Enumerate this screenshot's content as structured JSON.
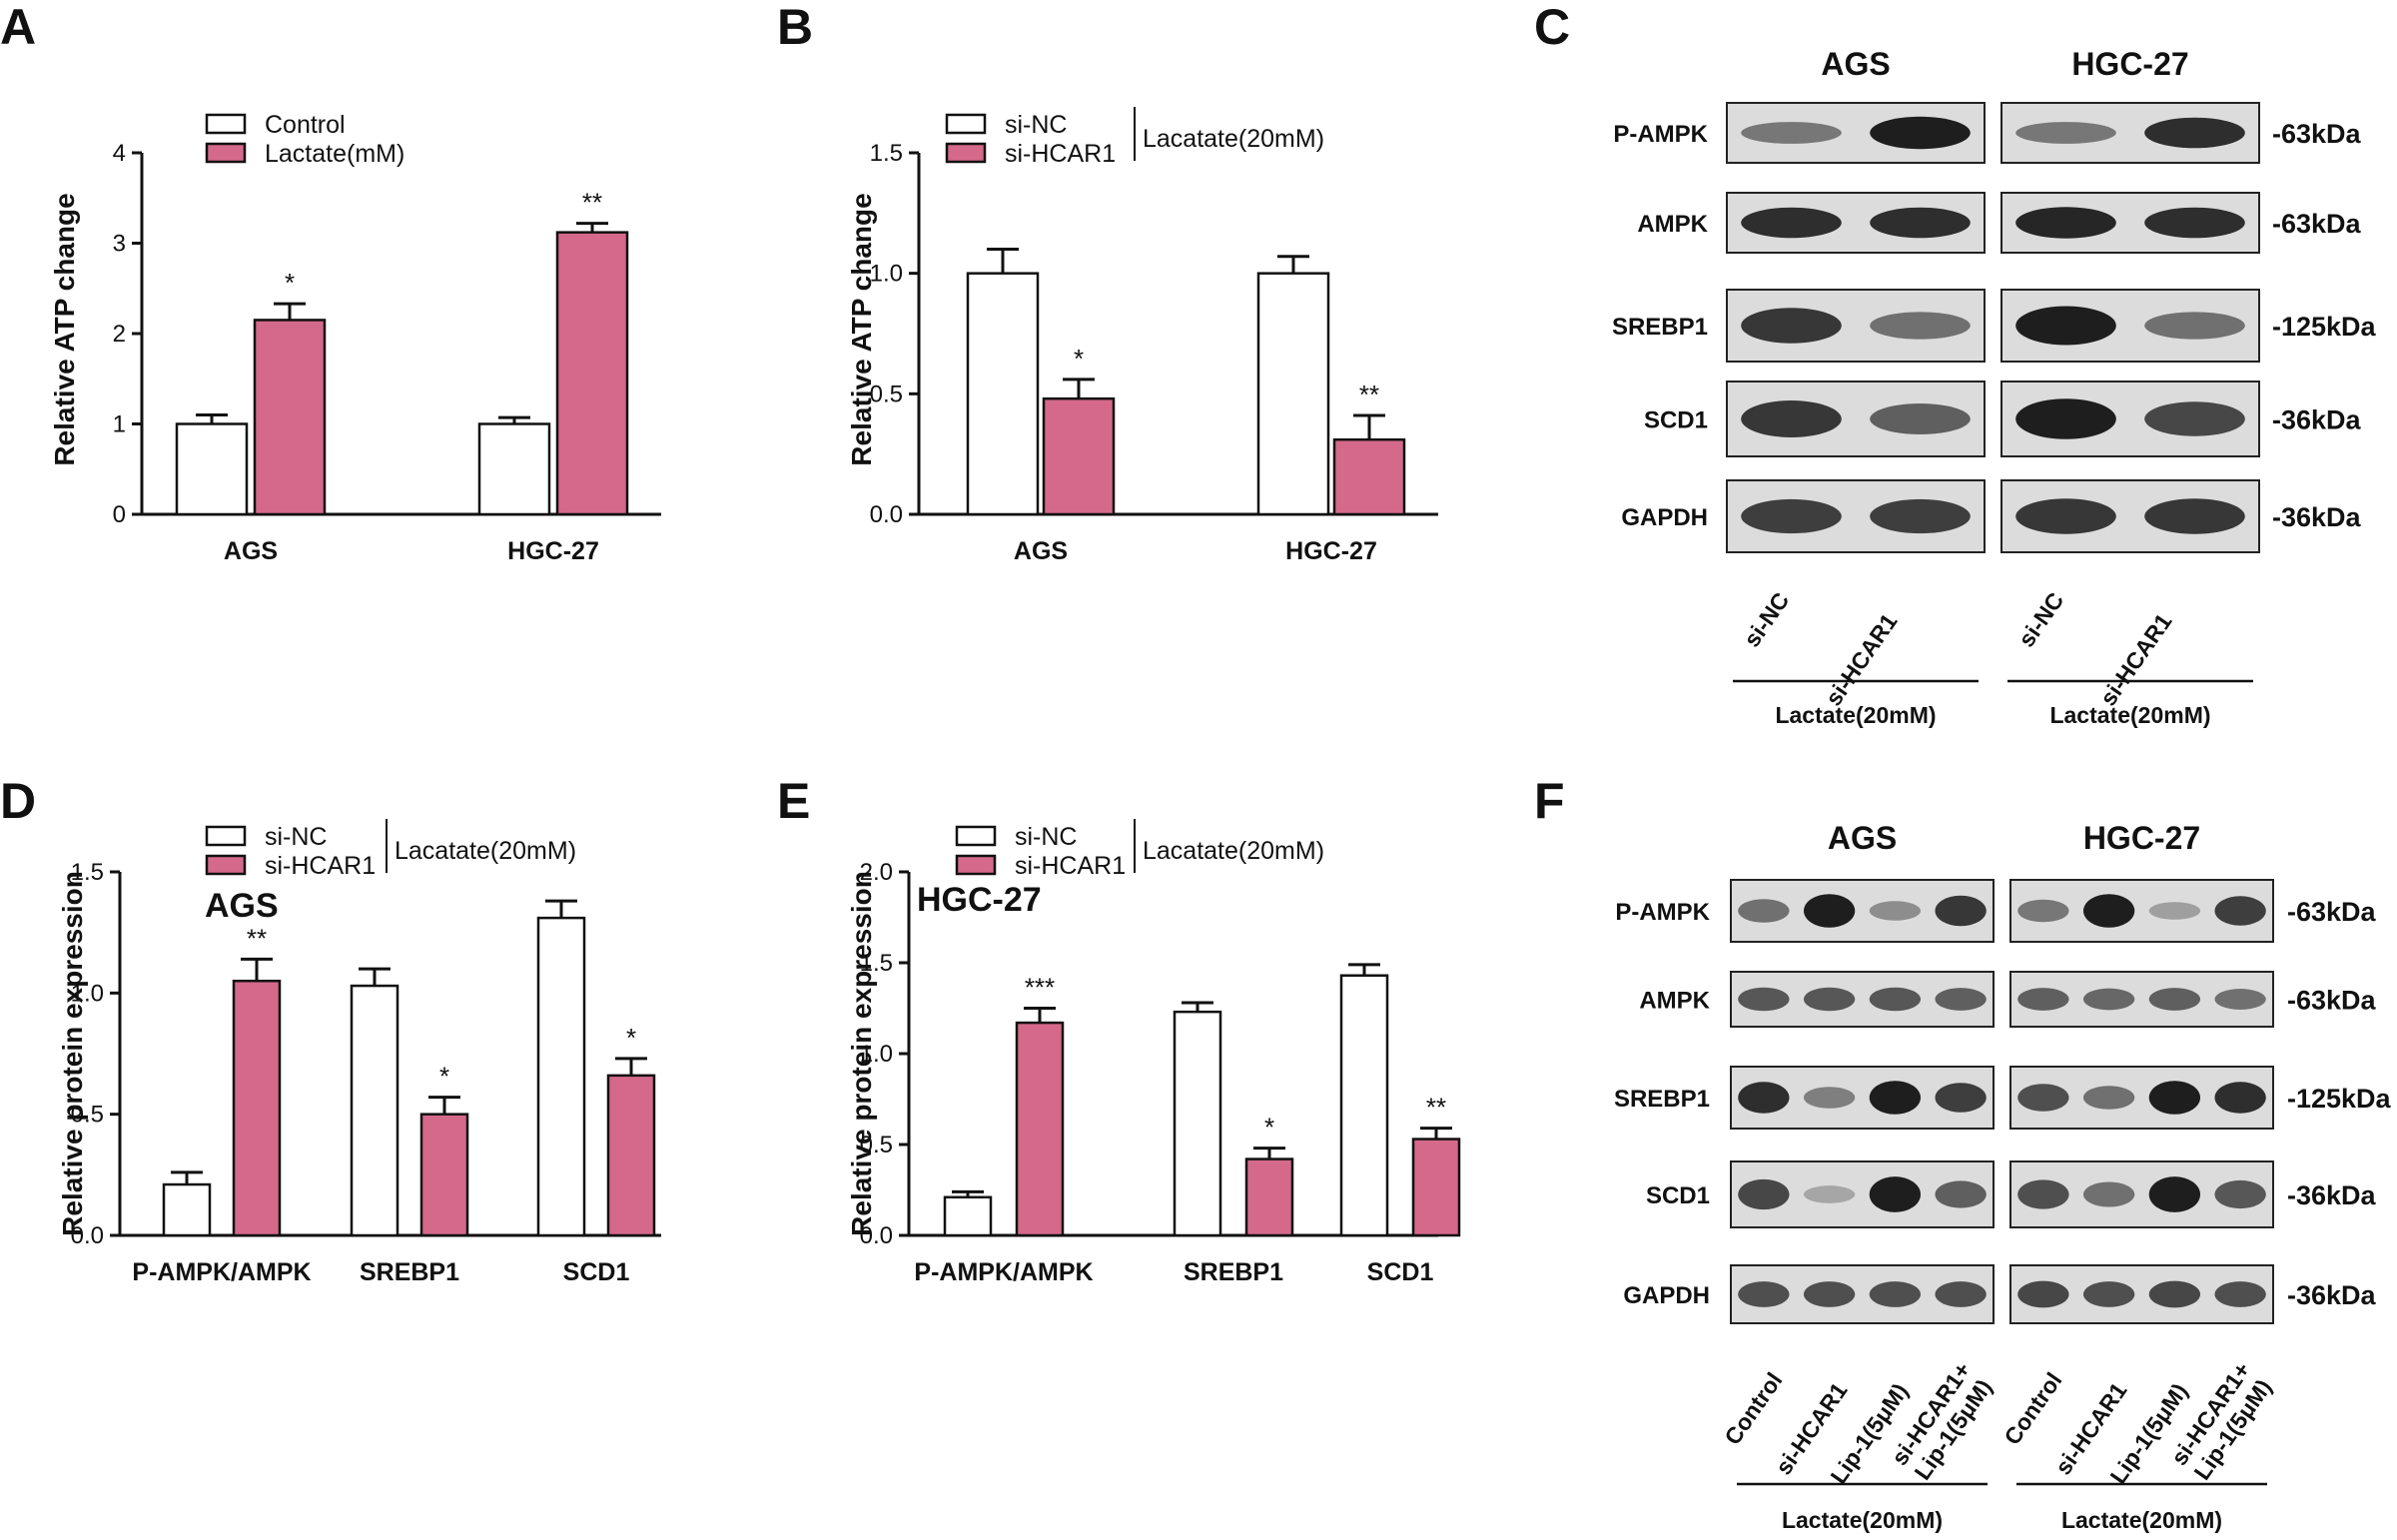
{
  "colors": {
    "treated": "#d4698b",
    "control": "#ffffff",
    "stroke": "#111111",
    "blot_bg": "#dcdcdc",
    "band": "#1e1e1e"
  },
  "charts": [
    {
      "id": "A",
      "letter": "A",
      "type": "bar",
      "title": "",
      "ylabel": "Relative ATP change",
      "categories": [
        "AGS",
        "HGC-27"
      ],
      "yticks": [
        "0",
        "1",
        "2",
        "3",
        "4"
      ],
      "legend": [
        "Control",
        "Lactate(mM)"
      ],
      "legend_bracket": ""
    },
    {
      "id": "B",
      "letter": "B",
      "type": "bar",
      "title": "",
      "ylabel": "Relative ATP change",
      "categories": [
        "AGS",
        "HGC-27"
      ],
      "yticks": [
        "0.0",
        "0.5",
        "1.0",
        "1.5"
      ],
      "legend": [
        "si-NC",
        "si-HCAR1"
      ],
      "legend_bracket": "Lacatate(20mM)"
    },
    {
      "id": "D",
      "letter": "D",
      "type": "bar",
      "title": "AGS",
      "ylabel": "Relative protein expression",
      "categories": [
        "P-AMPK/AMPK",
        "SREBP1",
        "SCD1"
      ],
      "yticks": [
        "0.0",
        "0.5",
        "1.0",
        "1.5"
      ],
      "legend": [
        "si-NC",
        "si-HCAR1"
      ],
      "legend_bracket": "Lacatate(20mM)"
    },
    {
      "id": "E",
      "letter": "E",
      "type": "bar",
      "title": "HGC-27",
      "ylabel": "Relative protein expression",
      "categories": [
        "P-AMPK/AMPK",
        "SREBP1",
        "SCD1"
      ],
      "yticks": [
        "0.0",
        "0.5",
        "1.0",
        "1.5",
        "2.0"
      ],
      "legend": [
        "si-NC",
        "si-HCAR1"
      ],
      "legend_bracket": "Lacatate(20mM)"
    }
  ],
  "chart_data": [
    {
      "type": "bar",
      "panel": "A",
      "ylim": [
        0,
        4
      ],
      "categories": [
        "AGS",
        "HGC-27"
      ],
      "series": [
        {
          "name": "Control",
          "values": [
            1.0,
            1.0
          ],
          "errors": [
            0.1,
            0.07
          ]
        },
        {
          "name": "Lactate(mM)",
          "values": [
            2.15,
            3.12
          ],
          "errors": [
            0.18,
            0.1
          ]
        }
      ],
      "significance": [
        "*",
        "**"
      ]
    },
    {
      "type": "bar",
      "panel": "B",
      "ylim": [
        0,
        1.5
      ],
      "categories": [
        "AGS",
        "HGC-27"
      ],
      "series": [
        {
          "name": "si-NC",
          "values": [
            1.0,
            1.0
          ],
          "errors": [
            0.1,
            0.07
          ]
        },
        {
          "name": "si-HCAR1",
          "values": [
            0.48,
            0.31
          ],
          "errors": [
            0.08,
            0.1
          ]
        }
      ],
      "significance": [
        "*",
        "**"
      ]
    },
    {
      "type": "bar",
      "panel": "D",
      "ylim": [
        0,
        1.5
      ],
      "categories": [
        "P-AMPK/AMPK",
        "SREBP1",
        "SCD1"
      ],
      "series": [
        {
          "name": "si-NC",
          "values": [
            0.21,
            1.03,
            1.31
          ],
          "errors": [
            0.05,
            0.07,
            0.07
          ]
        },
        {
          "name": "si-HCAR1",
          "values": [
            1.05,
            0.5,
            0.66
          ],
          "errors": [
            0.09,
            0.07,
            0.07
          ]
        }
      ],
      "significance": [
        "**",
        "*",
        "*"
      ]
    },
    {
      "type": "bar",
      "panel": "E",
      "ylim": [
        0,
        2.0
      ],
      "categories": [
        "P-AMPK/AMPK",
        "SREBP1",
        "SCD1"
      ],
      "series": [
        {
          "name": "si-NC",
          "values": [
            0.21,
            1.23,
            1.43
          ],
          "errors": [
            0.03,
            0.05,
            0.06
          ]
        },
        {
          "name": "si-HCAR1",
          "values": [
            1.17,
            0.42,
            0.53
          ],
          "errors": [
            0.08,
            0.06,
            0.06
          ]
        }
      ],
      "significance": [
        "***",
        "*",
        "**"
      ]
    }
  ],
  "blots": [
    {
      "id": "C",
      "letter": "C",
      "cells": [
        "AGS",
        "HGC-27"
      ],
      "rows": [
        {
          "protein": "P-AMPK",
          "kda": "-63kDa",
          "intensity": [
            [
              0.45,
              1.0
            ],
            [
              0.45,
              0.9
            ]
          ]
        },
        {
          "protein": "AMPK",
          "kda": "-63kDa",
          "intensity": [
            [
              0.9,
              0.9
            ],
            [
              0.95,
              0.9
            ]
          ]
        },
        {
          "protein": "SREBP1",
          "kda": "-125kDa",
          "intensity": [
            [
              0.85,
              0.5
            ],
            [
              1.0,
              0.5
            ]
          ]
        },
        {
          "protein": "SCD1",
          "kda": "-36kDa",
          "intensity": [
            [
              0.85,
              0.6
            ],
            [
              1.0,
              0.75
            ]
          ]
        },
        {
          "protein": "GAPDH",
          "kda": "-36kDa",
          "intensity": [
            [
              0.8,
              0.8
            ],
            [
              0.85,
              0.85
            ]
          ]
        }
      ],
      "lanes": [
        "si-NC",
        "si-HCAR1"
      ],
      "treatment": "Lactate(20mM)"
    },
    {
      "id": "F",
      "letter": "F",
      "cells": [
        "AGS",
        "HGC-27"
      ],
      "rows": [
        {
          "protein": "P-AMPK",
          "kda": "-63kDa",
          "intensity": [
            [
              0.5,
              1.0,
              0.3,
              0.85
            ],
            [
              0.45,
              1.0,
              0.2,
              0.8
            ]
          ]
        },
        {
          "protein": "AMPK",
          "kda": "-63kDa",
          "intensity": [
            [
              0.65,
              0.65,
              0.65,
              0.6
            ],
            [
              0.6,
              0.55,
              0.6,
              0.5
            ]
          ]
        },
        {
          "protein": "SREBP1",
          "kda": "-125kDa",
          "intensity": [
            [
              0.9,
              0.4,
              1.0,
              0.8
            ],
            [
              0.7,
              0.5,
              1.0,
              0.9
            ]
          ]
        },
        {
          "protein": "SCD1",
          "kda": "-36kDa",
          "intensity": [
            [
              0.75,
              0.15,
              1.0,
              0.6
            ],
            [
              0.7,
              0.5,
              1.0,
              0.65
            ]
          ]
        },
        {
          "protein": "GAPDH",
          "kda": "-36kDa",
          "intensity": [
            [
              0.7,
              0.7,
              0.7,
              0.7
            ],
            [
              0.75,
              0.7,
              0.75,
              0.7
            ]
          ]
        }
      ],
      "lanes": [
        "Control",
        "si-HCAR1",
        "Lip-1(5μM)",
        "si-HCAR1+",
        "Lip-1(5μM)"
      ],
      "treatment": "Lactate(20mM)"
    }
  ]
}
